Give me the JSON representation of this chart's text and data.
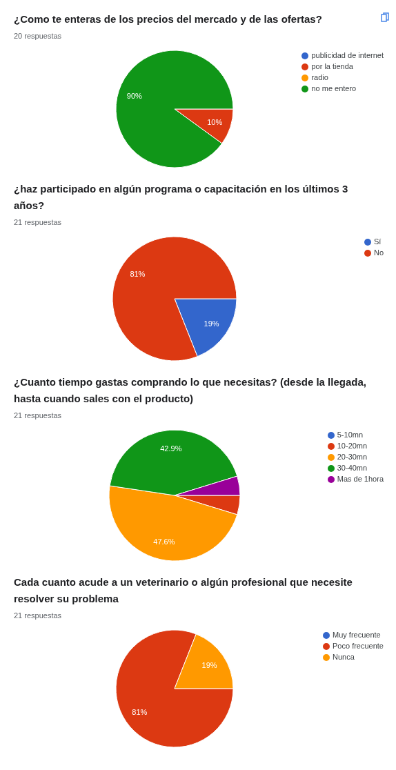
{
  "chart_data": [
    {
      "type": "pie",
      "title": "¿Como te enteras de los precios del mercado y de las ofertas?",
      "subtitle": "20 respuestas",
      "categories": [
        "publicidad de internet",
        "por la tienda",
        "radio",
        "no me entero"
      ],
      "values": [
        0,
        10,
        0,
        90
      ],
      "colors": [
        "#3366cc",
        "#dc3912",
        "#ff9900",
        "#109618"
      ],
      "value_labels": [
        null,
        "10%",
        null,
        "90%"
      ],
      "legend": "top right"
    },
    {
      "type": "pie",
      "title": "¿haz participado en algún programa o capacitación en los últimos 3 años?",
      "subtitle": "21 respuestas",
      "categories": [
        "Sí",
        "No"
      ],
      "values": [
        19,
        81
      ],
      "colors": [
        "#3366cc",
        "#dc3912"
      ],
      "value_labels": [
        "19%",
        "81%"
      ],
      "legend": "top right"
    },
    {
      "type": "pie",
      "title": "¿Cuanto tiempo gastas comprando lo que necesitas?  (desde la llegada, hasta cuando sales con el producto)",
      "subtitle": "21 respuestas",
      "categories": [
        "5-10mn",
        "10-20mn",
        "20-30mn",
        "30-40mn",
        "Mas de 1hora"
      ],
      "values": [
        0,
        4.75,
        47.6,
        42.9,
        4.75
      ],
      "colors": [
        "#3366cc",
        "#dc3912",
        "#ff9900",
        "#109618",
        "#990099"
      ],
      "value_labels": [
        null,
        null,
        "47.6%",
        "42.9%",
        null
      ],
      "legend": "top right"
    },
    {
      "type": "pie",
      "title": "Cada cuanto acude a un veterinario o algún profesional que necesite resolver su problema",
      "subtitle": "21 respuestas",
      "categories": [
        "Muy frecuente",
        "Poco frecuente",
        "Nunca"
      ],
      "values": [
        0,
        81,
        19
      ],
      "colors": [
        "#3366cc",
        "#dc3912",
        "#ff9900"
      ],
      "value_labels": [
        null,
        "81%",
        "19%"
      ],
      "legend": "top right"
    }
  ]
}
